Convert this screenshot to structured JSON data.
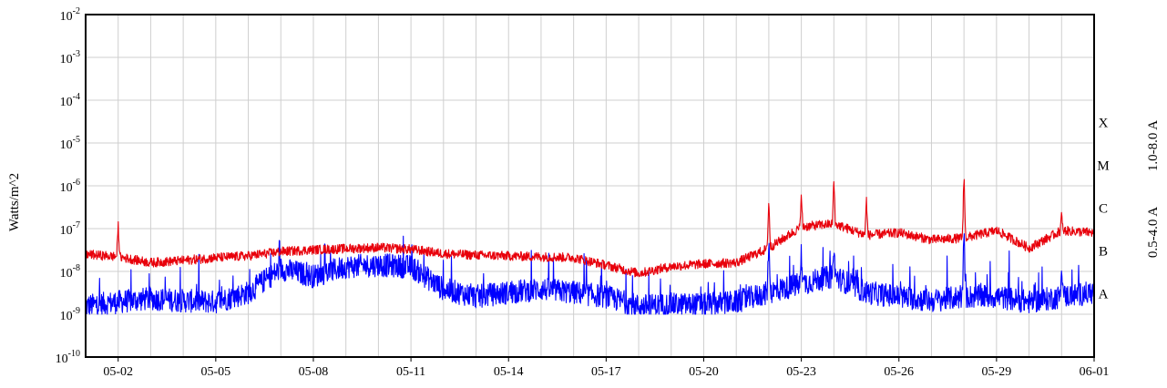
{
  "chart_data": {
    "type": "line",
    "y_scale": "log",
    "ylim_exponents": [
      -10,
      -2
    ],
    "y_tick_labels": [
      {
        "base": "10",
        "exp": "-2"
      },
      {
        "base": "10",
        "exp": "-3"
      },
      {
        "base": "10",
        "exp": "-4"
      },
      {
        "base": "10",
        "exp": "-5"
      },
      {
        "base": "10",
        "exp": "-6"
      },
      {
        "base": "10",
        "exp": "-7"
      },
      {
        "base": "10",
        "exp": "-8"
      },
      {
        "base": "10",
        "exp": "-9"
      },
      {
        "base": "10",
        "exp": "-10"
      }
    ],
    "x_range_days": [
      "05-01",
      "06-01"
    ],
    "x_tick_labels": [
      "05-02",
      "05-05",
      "05-08",
      "05-11",
      "05-14",
      "05-17",
      "05-20",
      "05-23",
      "05-26",
      "05-29",
      "06-01"
    ],
    "ylabel": "Watts/m^2",
    "flare_classes": [
      {
        "label": "X",
        "level_exp": -4
      },
      {
        "label": "M",
        "level_exp": -5
      },
      {
        "label": "C",
        "level_exp": -6
      },
      {
        "label": "B",
        "level_exp": -7
      },
      {
        "label": "A",
        "level_exp": -8
      }
    ],
    "series": [
      {
        "name": "1.0-8.0 A",
        "color": "#e8000b",
        "points": [
          [
            "05-01",
            2.5e-08
          ],
          [
            "05-02",
            2.2e-08
          ],
          [
            "05-03",
            1.6e-08
          ],
          [
            "05-04",
            1.8e-08
          ],
          [
            "05-05",
            2.1e-08
          ],
          [
            "05-06",
            2.3e-08
          ],
          [
            "05-07",
            2.9e-08
          ],
          [
            "05-08",
            3.2e-08
          ],
          [
            "05-09",
            3.4e-08
          ],
          [
            "05-10",
            3.6e-08
          ],
          [
            "05-11",
            3.3e-08
          ],
          [
            "05-12",
            2.6e-08
          ],
          [
            "05-13",
            2.4e-08
          ],
          [
            "05-14",
            2.3e-08
          ],
          [
            "05-15",
            2.2e-08
          ],
          [
            "05-16",
            2.1e-08
          ],
          [
            "05-17",
            1.4e-08
          ],
          [
            "05-18",
            9e-09
          ],
          [
            "05-19",
            1.3e-08
          ],
          [
            "05-20",
            1.5e-08
          ],
          [
            "05-21",
            1.6e-08
          ],
          [
            "05-22",
            3.5e-08
          ],
          [
            "05-23",
            1.1e-07
          ],
          [
            "05-24",
            1.3e-07
          ],
          [
            "05-25",
            7e-08
          ],
          [
            "05-26",
            8e-08
          ],
          [
            "05-27",
            5.5e-08
          ],
          [
            "05-28",
            6e-08
          ],
          [
            "05-29",
            9e-08
          ],
          [
            "05-30",
            3.5e-08
          ],
          [
            "05-31",
            9e-08
          ],
          [
            "06-01",
            8e-08
          ]
        ],
        "peaks": [
          [
            "05-02",
            1.7e-07
          ],
          [
            "05-22",
            8e-07
          ],
          [
            "05-23",
            7e-07
          ],
          [
            "05-24",
            2.1e-06
          ],
          [
            "05-25",
            7e-07
          ],
          [
            "05-28",
            3.3e-06
          ],
          [
            "05-31",
            2.5e-07
          ]
        ]
      },
      {
        "name": "0.5-4.0 A",
        "color": "#0000ff",
        "points": [
          [
            "05-01",
            1.2e-09
          ],
          [
            "05-02",
            1.5e-09
          ],
          [
            "05-03",
            1.8e-09
          ],
          [
            "05-04",
            1.6e-09
          ],
          [
            "05-05",
            1.5e-09
          ],
          [
            "05-06",
            2.5e-09
          ],
          [
            "05-07",
            9e-09
          ],
          [
            "05-08",
            6e-09
          ],
          [
            "05-09",
            1e-08
          ],
          [
            "05-10",
            1.1e-08
          ],
          [
            "05-11",
            1e-08
          ],
          [
            "05-12",
            3e-09
          ],
          [
            "05-13",
            2e-09
          ],
          [
            "05-14",
            2.5e-09
          ],
          [
            "05-15",
            3e-09
          ],
          [
            "05-16",
            2.5e-09
          ],
          [
            "05-17",
            2e-09
          ],
          [
            "05-18",
            1.2e-09
          ],
          [
            "05-19",
            1.3e-09
          ],
          [
            "05-20",
            1.3e-09
          ],
          [
            "05-21",
            1.5e-09
          ],
          [
            "05-22",
            2.5e-09
          ],
          [
            "05-23",
            4e-09
          ],
          [
            "05-24",
            6e-09
          ],
          [
            "05-25",
            2.5e-09
          ],
          [
            "05-26",
            2e-09
          ],
          [
            "05-27",
            1.6e-09
          ],
          [
            "05-28",
            2e-09
          ],
          [
            "05-29",
            2e-09
          ],
          [
            "05-30",
            1.5e-09
          ],
          [
            "05-31",
            2e-09
          ],
          [
            "06-01",
            2.5e-09
          ]
        ],
        "peaks": [
          [
            "05-22",
            1e-07
          ],
          [
            "05-23",
            2.5e-08
          ],
          [
            "05-24",
            4e-08
          ],
          [
            "05-28",
            1.5e-07
          ],
          [
            "05-31",
            1.5e-08
          ]
        ]
      }
    ],
    "grid": true,
    "legend": "right-side rotated labels"
  }
}
